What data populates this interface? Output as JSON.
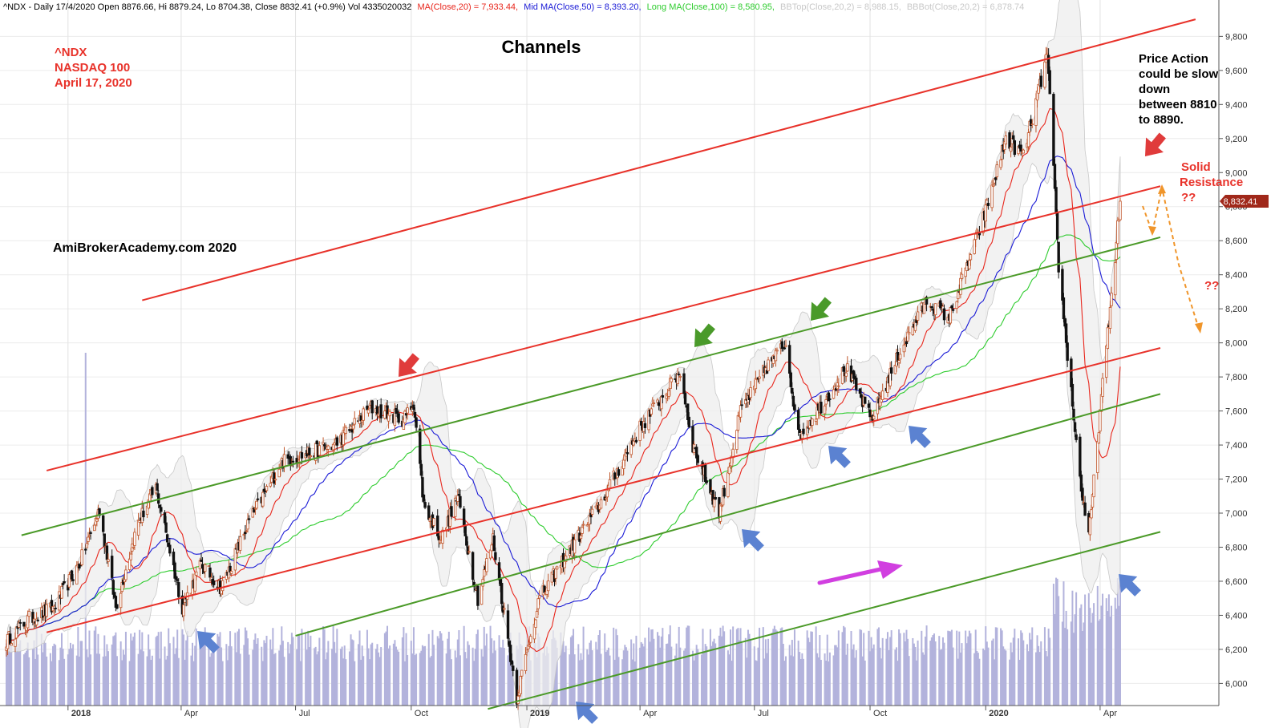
{
  "colors": {
    "ma20": "#e8271d",
    "ma50": "#1b1bd6",
    "ma100": "#2ecc2e",
    "bband": "#c8c8c8",
    "volume": "#b3b3dc",
    "channel_red": "#e8322a",
    "channel_green": "#4b9a28",
    "arrow_red": "#e03b3b",
    "arrow_green": "#4a9a2a",
    "arrow_blue": "#5b82d1",
    "arrow_magenta": "#d13fe0",
    "arrow_orange": "#f0952a",
    "annotation_red": "#e8322a",
    "price_tag": "#a0281a"
  },
  "chart_data": {
    "type": "candlestick",
    "header": {
      "prefix": "^NDX - Daily 17/4/2020 Open 8876.66, Hi 8879.24, Lo 8704.38, Close 8832.41 (+0.9%) Vol 4335020032",
      "ma20": "MA(Close,20) = 7,933.44,",
      "ma50": "Mid MA(Close,50) = 8,393.20,",
      "ma100": "Long MA(Close,100) = 8,580.95,",
      "bbtop": "BBTop(Close,20,2) = 8,988.15,",
      "bbbot": "BBBot(Close,20,2) = 6,878.74"
    },
    "title": "Channels",
    "symbol_block": [
      "^NDX",
      "NASDAQ 100",
      "April 17, 2020"
    ],
    "watermark": "AmiBrokerAcademy.com  2020",
    "annotations": {
      "price_action": [
        "Price Action",
        "could be slow",
        "down",
        "between 8810",
        "to 8890."
      ],
      "solid_resistance": [
        "Solid",
        "Resistance",
        "??"
      ],
      "question": "??"
    },
    "y_ticks": [
      "6,000",
      "6,200",
      "6,400",
      "6,600",
      "6,800",
      "7,000",
      "7,200",
      "7,400",
      "7,600",
      "7,800",
      "8,000",
      "8,200",
      "8,400",
      "8,600",
      "8,800",
      "9,000",
      "9,200",
      "9,400",
      "9,600",
      "9,800"
    ],
    "ylim": [
      5870,
      9910
    ],
    "x_labels": [
      {
        "label": "2018",
        "date": "2018-01"
      },
      {
        "label": "Apr",
        "date": "2018-04"
      },
      {
        "label": "Jul",
        "date": "2018-07"
      },
      {
        "label": "Oct",
        "date": "2018-10"
      },
      {
        "label": "2019",
        "date": "2019-01"
      },
      {
        "label": "Apr",
        "date": "2019-04"
      },
      {
        "label": "Jul",
        "date": "2019-07"
      },
      {
        "label": "Oct",
        "date": "2019-10"
      },
      {
        "label": "2020",
        "date": "2020-01"
      },
      {
        "label": "Apr",
        "date": "2020-04"
      }
    ],
    "last_price": "8,832.41",
    "price_path": [
      [
        "2017-11-13",
        6250
      ],
      [
        "2017-12-01",
        6380
      ],
      [
        "2017-12-20",
        6440
      ],
      [
        "2018-01-10",
        6700
      ],
      [
        "2018-01-26",
        7020
      ],
      [
        "2018-02-08",
        6450
      ],
      [
        "2018-02-26",
        6950
      ],
      [
        "2018-03-12",
        7150
      ],
      [
        "2018-04-02",
        6450
      ],
      [
        "2018-04-17",
        6700
      ],
      [
        "2018-05-03",
        6560
      ],
      [
        "2018-05-25",
        6950
      ],
      [
        "2018-06-20",
        7300
      ],
      [
        "2018-07-10",
        7350
      ],
      [
        "2018-08-01",
        7400
      ],
      [
        "2018-08-30",
        7620
      ],
      [
        "2018-09-25",
        7550
      ],
      [
        "2018-10-03",
        7650
      ],
      [
        "2018-10-11",
        7050
      ],
      [
        "2018-10-25",
        6850
      ],
      [
        "2018-11-07",
        7100
      ],
      [
        "2018-11-23",
        6500
      ],
      [
        "2018-12-05",
        6850
      ],
      [
        "2018-12-24",
        5920
      ],
      [
        "2019-01-10",
        6480
      ],
      [
        "2019-02-01",
        6750
      ],
      [
        "2019-02-28",
        7050
      ],
      [
        "2019-04-01",
        7500
      ],
      [
        "2019-05-03",
        7830
      ],
      [
        "2019-05-13",
        7400
      ],
      [
        "2019-06-03",
        7000
      ],
      [
        "2019-06-20",
        7600
      ],
      [
        "2019-07-10",
        7850
      ],
      [
        "2019-07-26",
        8000
      ],
      [
        "2019-08-05",
        7450
      ],
      [
        "2019-08-20",
        7600
      ],
      [
        "2019-09-12",
        7850
      ],
      [
        "2019-10-02",
        7550
      ],
      [
        "2019-10-25",
        7950
      ],
      [
        "2019-11-15",
        8250
      ],
      [
        "2019-12-03",
        8150
      ],
      [
        "2019-12-31",
        8750
      ],
      [
        "2020-01-17",
        9200
      ],
      [
        "2020-01-31",
        9100
      ],
      [
        "2020-02-19",
        9700
      ],
      [
        "2020-02-28",
        8450
      ],
      [
        "2020-03-16",
        7200
      ],
      [
        "2020-03-23",
        6850
      ],
      [
        "2020-04-01",
        7600
      ],
      [
        "2020-04-09",
        8200
      ],
      [
        "2020-04-17",
        8832
      ]
    ],
    "channels": [
      {
        "color": "red",
        "start": [
          "2017-12-15",
          7250
        ],
        "end": [
          "2020-04-17",
          8920
        ]
      },
      {
        "color": "red",
        "start": [
          "2018-03-01",
          8250
        ],
        "end": [
          "2020-05-15",
          9900
        ]
      },
      {
        "color": "red",
        "start": [
          "2017-12-15",
          6300
        ],
        "end": [
          "2020-04-17",
          7970
        ]
      },
      {
        "color": "green",
        "start": [
          "2017-11-25",
          6870
        ],
        "end": [
          "2020-04-17",
          8620
        ]
      },
      {
        "color": "green",
        "start": [
          "2018-07-01",
          6280
        ],
        "end": [
          "2020-04-17",
          7700
        ]
      },
      {
        "color": "green",
        "start": [
          "2018-12-01",
          5850
        ],
        "end": [
          "2020-04-17",
          6890
        ]
      }
    ]
  }
}
